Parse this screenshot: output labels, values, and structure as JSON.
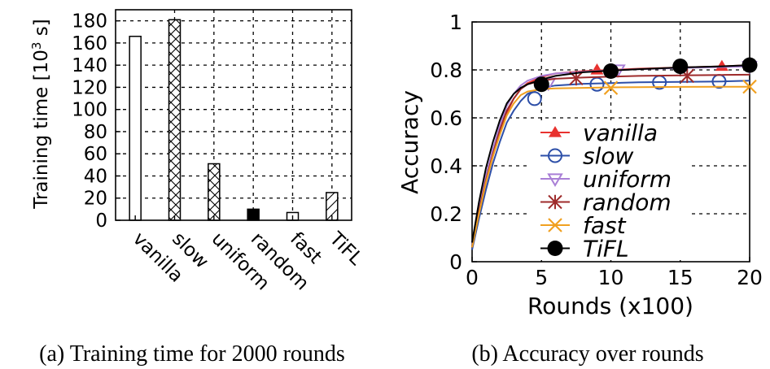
{
  "chart_data": [
    {
      "type": "bar",
      "ylabel": "Training time [10",
      "ylabel_exp": "3",
      "ylabel_unit": " s]",
      "categories": [
        "vanilla",
        "slow",
        "uniform",
        "random",
        "fast",
        "TiFL"
      ],
      "values": [
        166,
        181,
        51,
        10,
        7,
        25
      ],
      "patterns": [
        "empty",
        "crosshatch",
        "crosshatch",
        "solid",
        "empty",
        "diagonal"
      ],
      "ylim": [
        0,
        190
      ],
      "yticks": [
        0,
        20,
        40,
        60,
        80,
        100,
        120,
        140,
        160,
        180
      ],
      "grid": true,
      "caption": "(a) Training time for 2000 rounds"
    },
    {
      "type": "line",
      "xlabel": "Rounds (x100)",
      "ylabel": "Accuracy",
      "xlim": [
        0,
        20
      ],
      "ylim": [
        0,
        1
      ],
      "xticks": [
        0,
        5,
        10,
        15,
        20
      ],
      "yticks": [
        0,
        0.2,
        0.4,
        0.6,
        0.8,
        1
      ],
      "grid": true,
      "legend_position": "center-right",
      "series": [
        {
          "name": "vanilla",
          "color": "#e8322f",
          "marker": "triangle-up",
          "x": [
            0,
            0.5,
            1,
            1.5,
            2,
            2.5,
            3,
            3.5,
            4,
            5,
            6,
            8,
            10,
            12,
            15,
            18,
            20
          ],
          "y": [
            0.06,
            0.2,
            0.33,
            0.44,
            0.54,
            0.62,
            0.68,
            0.72,
            0.745,
            0.77,
            0.785,
            0.795,
            0.8,
            0.805,
            0.81,
            0.815,
            0.82
          ],
          "markers_x": [
            5,
            9,
            18
          ],
          "markers_y": [
            0.755,
            0.8,
            0.815
          ]
        },
        {
          "name": "slow",
          "color": "#2d4fa8",
          "marker": "circle-open",
          "x": [
            0,
            0.5,
            1,
            1.5,
            2,
            2.5,
            3,
            3.5,
            4,
            5,
            6,
            8,
            10,
            12,
            15,
            18,
            20
          ],
          "y": [
            0.05,
            0.18,
            0.3,
            0.41,
            0.5,
            0.58,
            0.63,
            0.67,
            0.7,
            0.725,
            0.735,
            0.742,
            0.745,
            0.748,
            0.75,
            0.752,
            0.755
          ],
          "markers_x": [
            4.5,
            9,
            13.5,
            17.8
          ],
          "markers_y": [
            0.68,
            0.74,
            0.748,
            0.752
          ]
        },
        {
          "name": "uniform",
          "color": "#a97fd6",
          "marker": "triangle-down-open",
          "x": [
            0,
            0.5,
            1,
            1.5,
            2,
            2.5,
            3,
            3.5,
            4,
            5,
            6,
            8,
            10,
            12,
            15,
            18,
            20
          ],
          "y": [
            0.07,
            0.22,
            0.36,
            0.47,
            0.57,
            0.65,
            0.7,
            0.735,
            0.755,
            0.775,
            0.785,
            0.792,
            0.798,
            0.803,
            0.808,
            0.812,
            0.815
          ],
          "markers_x": [
            5.5,
            10.5,
            20
          ],
          "markers_y": [
            0.745,
            0.8,
            0.815
          ]
        },
        {
          "name": "random",
          "color": "#9e2b2b",
          "marker": "asterisk",
          "x": [
            0,
            0.5,
            1,
            1.5,
            2,
            2.5,
            3,
            3.5,
            4,
            5,
            6,
            8,
            10,
            12,
            15,
            18,
            20
          ],
          "y": [
            0.06,
            0.21,
            0.34,
            0.45,
            0.55,
            0.63,
            0.68,
            0.72,
            0.74,
            0.755,
            0.763,
            0.768,
            0.772,
            0.775,
            0.777,
            0.779,
            0.78
          ],
          "markers_x": [
            7.5,
            15.5
          ],
          "markers_y": [
            0.765,
            0.775
          ]
        },
        {
          "name": "fast",
          "color": "#f0a020",
          "marker": "x",
          "x": [
            0,
            0.5,
            1,
            1.5,
            2,
            2.5,
            3,
            3.5,
            4,
            5,
            6,
            8,
            10,
            12,
            15,
            18,
            20
          ],
          "y": [
            0.06,
            0.2,
            0.33,
            0.44,
            0.53,
            0.61,
            0.66,
            0.695,
            0.71,
            0.72,
            0.723,
            0.725,
            0.727,
            0.728,
            0.729,
            0.73,
            0.73
          ],
          "markers_x": [
            10,
            20
          ],
          "markers_y": [
            0.725,
            0.73
          ]
        },
        {
          "name": "TiFL",
          "color": "#000000",
          "marker": "circle-filled",
          "x": [
            0,
            0.5,
            1,
            1.5,
            2,
            2.5,
            3,
            3.5,
            4,
            5,
            6,
            8,
            10,
            12,
            15,
            18,
            20
          ],
          "y": [
            0.08,
            0.25,
            0.39,
            0.5,
            0.59,
            0.66,
            0.7,
            0.725,
            0.74,
            0.76,
            0.775,
            0.79,
            0.797,
            0.803,
            0.81,
            0.815,
            0.82
          ],
          "markers_x": [
            5,
            10,
            15,
            20
          ],
          "markers_y": [
            0.74,
            0.795,
            0.815,
            0.82
          ]
        }
      ],
      "caption": "(b) Accuracy over rounds"
    }
  ]
}
